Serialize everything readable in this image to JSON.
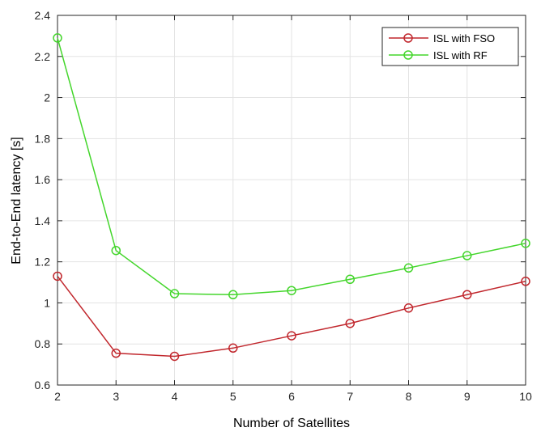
{
  "chart_data": {
    "type": "line",
    "title": "",
    "xlabel": "Number of Satellites",
    "ylabel": "End-to-End latency [s]",
    "x": [
      2,
      3,
      4,
      5,
      6,
      7,
      8,
      9,
      10
    ],
    "xlim": [
      2,
      10
    ],
    "ylim": [
      0.6,
      2.4
    ],
    "xticks": [
      2,
      3,
      4,
      5,
      6,
      7,
      8,
      9,
      10
    ],
    "yticks": [
      0.6,
      0.8,
      1,
      1.2,
      1.4,
      1.6,
      1.8,
      2,
      2.2,
      2.4
    ],
    "grid": true,
    "legend_position": "top-right",
    "series": [
      {
        "name": "ISL with FSO",
        "color": "#c1272d",
        "marker": "circle",
        "values": [
          1.13,
          0.755,
          0.74,
          0.78,
          0.84,
          0.9,
          0.975,
          1.04,
          1.105
        ]
      },
      {
        "name": "ISL with RF",
        "color": "#44d62c",
        "marker": "circle",
        "values": [
          2.29,
          1.255,
          1.045,
          1.04,
          1.06,
          1.115,
          1.17,
          1.23,
          1.29
        ]
      }
    ]
  }
}
